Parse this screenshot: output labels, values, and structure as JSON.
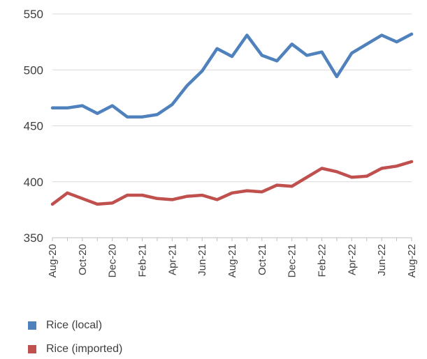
{
  "chart_data": {
    "type": "line",
    "title": "",
    "xlabel": "",
    "ylabel": "",
    "ylim": [
      350,
      550
    ],
    "yticks": [
      350,
      400,
      450,
      500,
      550
    ],
    "grid": true,
    "legend_position": "bottom-left",
    "x": [
      "Aug-20",
      "Sep-20",
      "Oct-20",
      "Nov-20",
      "Dec-20",
      "Jan-21",
      "Feb-21",
      "Mar-21",
      "Apr-21",
      "May-21",
      "Jun-21",
      "Jul-21",
      "Aug-21",
      "Sep-21",
      "Oct-21",
      "Nov-21",
      "Dec-21",
      "Jan-22",
      "Feb-22",
      "Mar-22",
      "Apr-22",
      "May-22",
      "Jun-22",
      "Jul-22",
      "Aug-22"
    ],
    "xtick_labels": [
      "Aug-20",
      "Oct-20",
      "Dec-20",
      "Feb-21",
      "Apr-21",
      "Jun-21",
      "Aug-21",
      "Oct-21",
      "Dec-21",
      "Feb-22",
      "Apr-22",
      "Jun-22",
      "Aug-22"
    ],
    "series": [
      {
        "name": "Rice (local)",
        "color": "#4F81BD",
        "values": [
          466,
          466,
          468,
          461,
          468,
          458,
          458,
          460,
          469,
          486,
          499,
          519,
          512,
          531,
          513,
          508,
          523,
          513,
          516,
          494,
          515,
          523,
          531,
          525,
          532
        ]
      },
      {
        "name": "Rice (imported)",
        "color": "#C0504D",
        "values": [
          380,
          390,
          385,
          380,
          381,
          388,
          388,
          385,
          384,
          387,
          388,
          384,
          390,
          392,
          391,
          397,
          396,
          404,
          412,
          409,
          404,
          405,
          412,
          414,
          418
        ]
      }
    ]
  }
}
